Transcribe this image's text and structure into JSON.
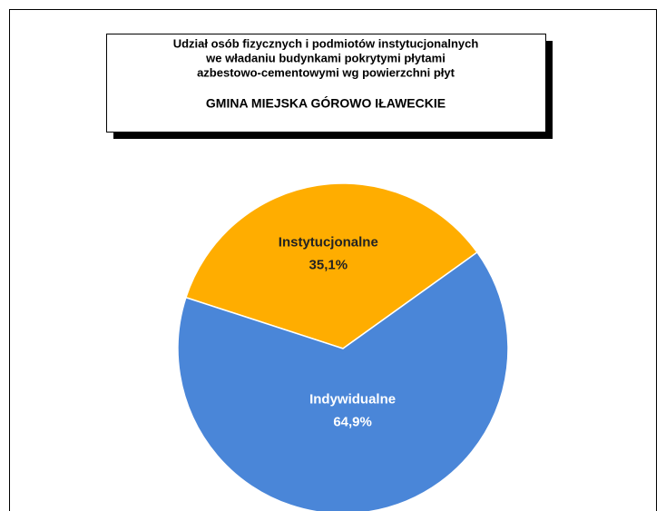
{
  "chart_data": {
    "type": "pie",
    "title": [
      "Udział osób fizycznych i podmiotów instytucjonalnych",
      "we władaniu budynkami pokrytymi płytami",
      "azbestowo-cementowymi wg powierzchni płyt"
    ],
    "subtitle": "GMINA MIEJSKA GÓROWO IŁAWECKIE",
    "categories": [
      "Instytucjonalne",
      "Indywidualne"
    ],
    "values": [
      35.1,
      64.9
    ],
    "value_labels": [
      "35,1%",
      "64,9%"
    ],
    "colors": [
      "#ffad00",
      "#4a86d8"
    ]
  }
}
